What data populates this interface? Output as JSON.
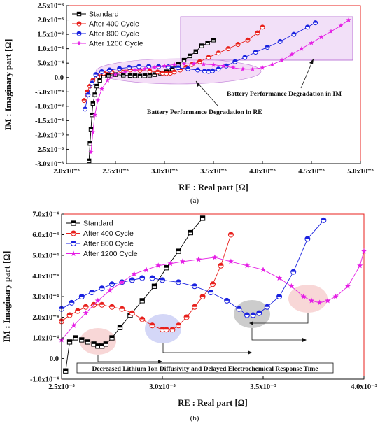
{
  "chart_data": [
    {
      "type": "scatter",
      "caption": "(a)",
      "xlabel": "RE : Real part [Ω]",
      "ylabel": "IM : Imaginary part [Ω]",
      "xlim": [
        0.002,
        0.005
      ],
      "ylim": [
        -0.003,
        0.0025
      ],
      "xticks": [
        "2.0x10⁻³",
        "2.5x10⁻³",
        "3.0x10⁻³",
        "3.5x10⁻³",
        "4.0x10⁻³",
        "4.5x10⁻³",
        "5.0x10⁻³"
      ],
      "yticks": [
        "2.5x10⁻³",
        "2.0x10⁻³",
        "1.5x10⁻³",
        "1.0x10⁻³",
        "5.0x10⁻⁴",
        "0.0",
        "-5.0x10⁻⁴",
        "-1.0x10⁻³",
        "-1.5x10⁻³",
        "-2.0x10⁻³",
        "-2.5x10⁻³",
        "-3.0x10⁻³"
      ],
      "legend_position": "top-left",
      "series": [
        {
          "name": "Standard",
          "color": "#000000",
          "marker": "square",
          "x": [
            0.00223,
            0.00224,
            0.00225,
            0.00226,
            0.00227,
            0.00229,
            0.00231,
            0.00234,
            0.00238,
            0.00243,
            0.0025,
            0.00258,
            0.00265,
            0.0027,
            0.00275,
            0.0028,
            0.00285,
            0.0029,
            0.00296,
            0.00302,
            0.00308,
            0.00314,
            0.0032,
            0.00326,
            0.00332,
            0.00338,
            0.00344,
            0.0035
          ],
          "y": [
            -0.0029,
            -0.0023,
            -0.0018,
            -0.0013,
            -0.0009,
            -0.0006,
            -0.0003,
            -0.0001,
            5e-05,
            8e-05,
            0.0001,
            8e-05,
            7e-05,
            6e-05,
            5e-05,
            6e-05,
            8e-05,
            0.0001,
            0.00015,
            0.0002,
            0.0003,
            0.00045,
            0.0006,
            0.00075,
            0.0009,
            0.0011,
            0.0012,
            0.0013
          ]
        },
        {
          "name": "After 400 Cycle",
          "color": "#e8201c",
          "marker": "circle",
          "x": [
            0.00218,
            0.00221,
            0.00224,
            0.00227,
            0.00232,
            0.00238,
            0.00246,
            0.00255,
            0.00265,
            0.00275,
            0.00285,
            0.00293,
            0.00298,
            0.00302,
            0.00306,
            0.0031,
            0.00316,
            0.00322,
            0.00328,
            0.00336,
            0.00345,
            0.00355,
            0.00365,
            0.00375,
            0.00385,
            0.00395,
            0.004
          ],
          "y": [
            -0.0008,
            -0.0005,
            -0.0003,
            -0.0001,
            5e-05,
            0.00015,
            0.0002,
            0.00025,
            0.00026,
            0.00025,
            0.00022,
            0.00019,
            0.00015,
            0.00014,
            0.00015,
            0.00019,
            0.00026,
            0.00035,
            0.00045,
            0.00055,
            0.0007,
            0.00085,
            0.001,
            0.00115,
            0.0013,
            0.00155,
            0.00175
          ]
        },
        {
          "name": "After 800 Cycle",
          "color": "#1a22e0",
          "marker": "circle",
          "x": [
            0.00219,
            0.00222,
            0.00226,
            0.0023,
            0.00236,
            0.00244,
            0.00254,
            0.00264,
            0.00274,
            0.00284,
            0.00294,
            0.00304,
            0.00314,
            0.00324,
            0.00334,
            0.00341,
            0.00345,
            0.00349,
            0.00355,
            0.00363,
            0.00372,
            0.00382,
            0.00393,
            0.00405,
            0.00418,
            0.00432,
            0.00446,
            0.00454
          ],
          "y": [
            -0.0011,
            -0.0006,
            -0.0002,
            0.0001,
            0.0002,
            0.00026,
            0.00031,
            0.00035,
            0.00038,
            0.00039,
            0.00038,
            0.00037,
            0.00034,
            0.0003,
            0.00026,
            0.00022,
            0.00021,
            0.00023,
            0.00029,
            0.0004,
            0.00055,
            0.0007,
            0.00088,
            0.00105,
            0.00125,
            0.0015,
            0.00175,
            0.0019
          ]
        },
        {
          "name": "After 1200 Cycle",
          "color": "#e51ee5",
          "marker": "star",
          "x": [
            0.00225,
            0.00227,
            0.00229,
            0.00232,
            0.00236,
            0.00242,
            0.0025,
            0.0026,
            0.0027,
            0.0028,
            0.0029,
            0.003,
            0.0031,
            0.0032,
            0.0033,
            0.0034,
            0.0035,
            0.0036,
            0.0037,
            0.0038,
            0.0039,
            0.004,
            0.0041,
            0.0042,
            0.0043,
            0.0044,
            0.0045,
            0.0046,
            0.0047,
            0.0048,
            0.00488
          ],
          "y": [
            -0.0026,
            -0.0019,
            -0.0013,
            -0.0008,
            -0.0004,
            -0.0001,
            0.0001,
            0.0002,
            0.00025,
            0.0003,
            0.00035,
            0.0004,
            0.00045,
            0.00047,
            0.00048,
            0.00046,
            0.00044,
            0.0004,
            0.00034,
            0.00029,
            0.00029,
            0.00034,
            0.00045,
            0.0006,
            0.0008,
            0.001,
            0.0012,
            0.0014,
            0.0016,
            0.0018,
            0.002
          ]
        }
      ],
      "annotations": [
        {
          "text": "Battery Performance Degradation in IM"
        },
        {
          "text": "Battery Performance Degradation in RE"
        }
      ]
    },
    {
      "type": "scatter",
      "caption": "(b)",
      "xlabel": "RE : Real part [Ω]",
      "ylabel": "IM : Imaginary part [Ω]",
      "xlim": [
        0.0025,
        0.004
      ],
      "ylim": [
        -0.0001,
        0.0007
      ],
      "xticks": [
        "2.5x10⁻³",
        "3.0x10⁻³",
        "3.5x10⁻³",
        "4.0x10⁻³"
      ],
      "yticks": [
        "7.0x10⁻⁴",
        "6.0x10⁻⁴",
        "5.0x10⁻⁴",
        "4.0x10⁻⁴",
        "3.0x10⁻⁴",
        "2.0x10⁻⁴",
        "1.0x10⁻⁴",
        "0.0",
        "-1.0x10⁻⁴"
      ],
      "legend_position": "top-left",
      "series": [
        {
          "name": "Standard",
          "color": "#000000",
          "marker": "square",
          "x": [
            0.00252,
            0.00254,
            0.00257,
            0.0026,
            0.00263,
            0.00266,
            0.00268,
            0.0027,
            0.00272,
            0.00275,
            0.00279,
            0.00284,
            0.0029,
            0.00296,
            0.00302,
            0.00308,
            0.00314,
            0.0032
          ],
          "y": [
            -6e-05,
            8e-05,
            0.0001,
            9e-05,
            8e-05,
            7e-05,
            6e-05,
            6e-05,
            7e-05,
            0.0001,
            0.00015,
            0.00021,
            0.00028,
            0.00035,
            0.00044,
            0.00052,
            0.00061,
            0.00068
          ]
        },
        {
          "name": "After 400 Cycle",
          "color": "#e8201c",
          "marker": "circle",
          "x": [
            0.0025,
            0.00254,
            0.00258,
            0.00262,
            0.00266,
            0.0027,
            0.00275,
            0.0028,
            0.00285,
            0.0029,
            0.00295,
            0.003,
            0.00302,
            0.00305,
            0.00308,
            0.00312,
            0.00316,
            0.0032,
            0.00325,
            0.00329,
            0.00334,
            0.0034
          ],
          "y": [
            0.00018,
            0.00021,
            0.00023,
            0.00025,
            0.00026,
            0.00026,
            0.00025,
            0.00024,
            0.00022,
            0.00019,
            0.00016,
            0.00014,
            0.00014,
            0.00014,
            0.00016,
            0.0002,
            0.00025,
            0.0003,
            0.00036,
            0.00045,
            0.0006,
            0.00072
          ]
        },
        {
          "name": "After 800 Cycle",
          "color": "#1a22e0",
          "marker": "circle",
          "x": [
            0.0025,
            0.00255,
            0.0026,
            0.00265,
            0.0027,
            0.00275,
            0.0028,
            0.00285,
            0.0029,
            0.00295,
            0.003,
            0.00308,
            0.00316,
            0.00324,
            0.00332,
            0.00338,
            0.00342,
            0.00345,
            0.00348,
            0.00352,
            0.00358,
            0.00365,
            0.00372,
            0.0038
          ],
          "y": [
            0.00024,
            0.00027,
            0.0003,
            0.00032,
            0.00034,
            0.00036,
            0.00037,
            0.00038,
            0.00039,
            0.00039,
            0.00038,
            0.00037,
            0.00035,
            0.00032,
            0.00028,
            0.00024,
            0.00021,
            0.00021,
            0.00022,
            0.00025,
            0.0003,
            0.00042,
            0.00058,
            0.00067
          ]
        },
        {
          "name": "After 1200 Cycle",
          "color": "#e51ee5",
          "marker": "star",
          "x": [
            0.0025,
            0.00256,
            0.00262,
            0.00268,
            0.00274,
            0.0028,
            0.00286,
            0.00292,
            0.00298,
            0.00304,
            0.0031,
            0.00318,
            0.00326,
            0.00334,
            0.00342,
            0.0035,
            0.00358,
            0.00364,
            0.0037,
            0.00374,
            0.00378,
            0.00382,
            0.00386,
            0.00392,
            0.00398,
            0.004
          ],
          "y": [
            9e-05,
            0.00016,
            0.00022,
            0.00028,
            0.00033,
            0.00037,
            0.00041,
            0.00043,
            0.00045,
            0.00046,
            0.00047,
            0.00048,
            0.00049,
            0.00047,
            0.00045,
            0.00043,
            0.00039,
            0.00035,
            0.0003,
            0.00028,
            0.00027,
            0.00028,
            0.0003,
            0.00035,
            0.00045,
            0.00052
          ]
        }
      ],
      "annotations": [
        {
          "text": "Decreased Lithium-Ion Diffusivity and Delayed Electrochemical Response Time"
        }
      ]
    }
  ]
}
